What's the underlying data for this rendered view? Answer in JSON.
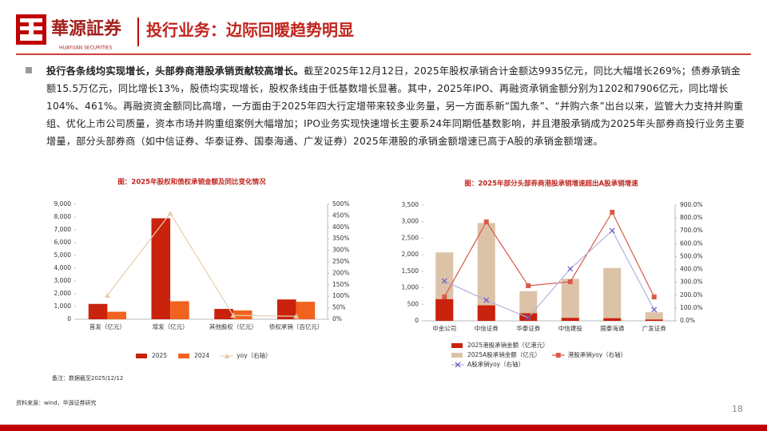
{
  "header": {
    "brand": "華源証券",
    "brand_en": "HUAYUAN SECURITIES",
    "title": "投行业务：边际回暖趋势明显"
  },
  "body": {
    "lead": "投行各条线均实现增长，头部券商港股承销贡献较高增长。",
    "text": "截至2025年12月12日，2025年股权承销合计金额达9935亿元，同比大幅增长269%；债券承销金额15.5万亿元，同比增长13%，股债均实现增长，股权条线由于低基数增长显著。其中，2025年IPO、再融资承销金额分别为1202和7906亿元，同比增长104%、461%。再融资资金额同比高增，一方面由于2025年四大行定增带来较多业务量，另一方面系新“国九条”、“并购六条”出台以来，监管大力支持并购重组、优化上市公司质量，资本市场并购重组案例大幅增加；IPO业务实现快速增长主要系24年同期低基数影响，并且港股承销成为2025年头部券商投行业务主要增量，部分头部券商（如中信证券、华泰证券、国泰海通、广发证券）2025年港股的承销金额增速已高于A股的承销金额增速。"
  },
  "chart_data": [
    {
      "type": "combo",
      "title": "图：2025年股权和债权承销金额及同比变化情况",
      "bar_mode": "group",
      "categories": [
        "首发（亿元）",
        "增发（亿元）",
        "其他股权（亿元）",
        "债权承销（百亿元）"
      ],
      "series": [
        {
          "name": "2025",
          "kind": "bar",
          "color": "#c9220d",
          "values": [
            1202,
            7906,
            810,
            1550
          ]
        },
        {
          "name": "2024",
          "kind": "bar",
          "color": "#f2621f",
          "values": [
            590,
            1410,
            690,
            1370
          ]
        },
        {
          "name": "yoy（右轴）",
          "kind": "line",
          "axis": "y2",
          "marker": "triangle",
          "color": "#e6cfae",
          "values": [
            104,
            461,
            17,
            13
          ]
        }
      ],
      "ylim": [
        0,
        9000
      ],
      "yticks": [
        0,
        {
          "value": 1000,
          "label": "1,000"
        },
        {
          "value": 2000,
          "label": "2,000"
        },
        {
          "value": 3000,
          "label": "3,000"
        },
        {
          "value": 4000,
          "label": "4,000"
        },
        {
          "value": 5000,
          "label": "5,000"
        },
        {
          "value": 6000,
          "label": "6,000"
        },
        {
          "value": 7000,
          "label": "7,000"
        },
        {
          "value": 8000,
          "label": "8,000"
        },
        {
          "value": 9000,
          "label": "9,000"
        }
      ],
      "y2lim": [
        0,
        500
      ],
      "y2ticks": [
        {
          "value": 0,
          "label": "0%"
        },
        {
          "value": 50,
          "label": "50%"
        },
        {
          "value": 100,
          "label": "100%"
        },
        {
          "value": 150,
          "label": "150%"
        },
        {
          "value": 200,
          "label": "200%"
        },
        {
          "value": 250,
          "label": "250%"
        },
        {
          "value": 300,
          "label": "300%"
        },
        {
          "value": 350,
          "label": "350%"
        },
        {
          "value": 400,
          "label": "400%"
        },
        {
          "value": 450,
          "label": "450%"
        },
        {
          "value": 500,
          "label": "500%"
        }
      ],
      "note": "备注：数据截至2025/12/12"
    },
    {
      "type": "combo",
      "title": "图：2025年部分头部券商港股承销增速超出A股承销增速",
      "bar_mode": "overlap",
      "categories": [
        "中金公司",
        "中信证券",
        "华泰证券",
        "中信建投",
        "国泰海通",
        "广发证券"
      ],
      "series": [
        {
          "name": "2025港股承销金额（亿港元）",
          "kind": "bar",
          "color": "#c9220d",
          "values": [
            655,
            470,
            230,
            90,
            80,
            40
          ]
        },
        {
          "name": "2025A股承销金额（亿元）",
          "kind": "bar",
          "color": "#dcc3a8",
          "values": [
            2070,
            2960,
            900,
            1270,
            1600,
            260
          ]
        },
        {
          "name": "港股承销yoy（右轴）",
          "kind": "line",
          "axis": "y2",
          "marker": "square",
          "color": "#d95a48",
          "values": [
            186,
            770,
            273,
            304,
            845,
            186
          ]
        },
        {
          "name": "A股承销yoy（右轴）",
          "kind": "line",
          "axis": "y2",
          "marker": "x",
          "color": "#b4b0dc",
          "values": [
            310,
            160,
            25,
            404,
            702,
            87
          ]
        }
      ],
      "ylim": [
        0,
        3500
      ],
      "yticks": [
        0,
        500,
        {
          "value": 1000,
          "label": "1,000"
        },
        {
          "value": 1500,
          "label": "1,500"
        },
        {
          "value": 2000,
          "label": "2,000"
        },
        {
          "value": 2500,
          "label": "2,500"
        },
        {
          "value": 3000,
          "label": "3,000"
        },
        {
          "value": 3500,
          "label": "3,500"
        }
      ],
      "y2lim": [
        0,
        900
      ],
      "y2ticks": [
        {
          "value": 0,
          "label": "0.0%"
        },
        {
          "value": 100,
          "label": "100.0%"
        },
        {
          "value": 200,
          "label": "200.0%"
        },
        {
          "value": 300,
          "label": "300.0%"
        },
        {
          "value": 400,
          "label": "400.0%"
        },
        {
          "value": 500,
          "label": "500.0%"
        },
        {
          "value": 600,
          "label": "600.0%"
        },
        {
          "value": 700,
          "label": "700.0%"
        },
        {
          "value": 800,
          "label": "800.0%"
        },
        {
          "value": 900,
          "label": "900.0%"
        }
      ]
    }
  ],
  "footer": {
    "source": "资料来源：wind，华源证券研究",
    "page": "18"
  }
}
